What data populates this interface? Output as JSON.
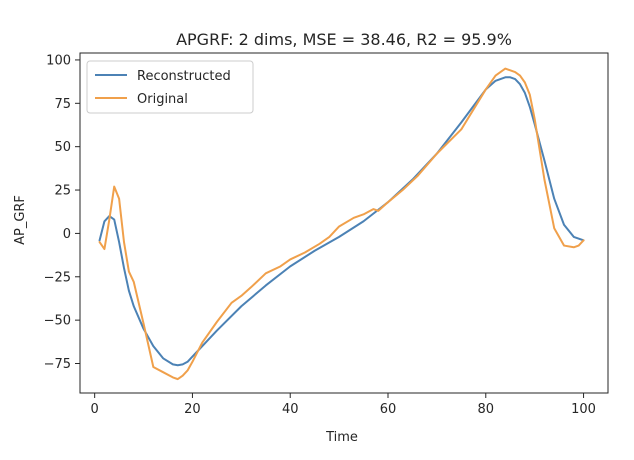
{
  "chart_data": {
    "type": "line",
    "title": "APGRF: 2 dims, MSE = 38.46, R2 = 95.9%",
    "xlabel": "Time",
    "ylabel": "AP_GRF",
    "xlim": [
      -3,
      105
    ],
    "ylim": [
      -92,
      104
    ],
    "xticks": [
      0,
      20,
      40,
      60,
      80,
      100
    ],
    "yticks": [
      -75,
      -50,
      -25,
      0,
      25,
      50,
      75,
      100
    ],
    "grid": false,
    "legend_position": "top-left",
    "series": [
      {
        "name": "Reconstructed",
        "color": "#4c82b5",
        "x": [
          1,
          2,
          3,
          4,
          5,
          6,
          7,
          8,
          10,
          12,
          14,
          16,
          17,
          18,
          19,
          20,
          22,
          25,
          30,
          35,
          40,
          45,
          50,
          55,
          60,
          65,
          70,
          75,
          80,
          82,
          84,
          85,
          86,
          87,
          88,
          89,
          90,
          92,
          94,
          96,
          98,
          100
        ],
        "y": [
          -4,
          7,
          10,
          8,
          -5,
          -20,
          -33,
          -42,
          -55,
          -65,
          -72,
          -75.5,
          -76,
          -75.5,
          -74,
          -71,
          -65,
          -56,
          -42,
          -30,
          -19,
          -10,
          -2,
          7,
          18,
          31,
          46,
          64,
          83,
          88,
          90,
          90,
          89,
          86,
          81,
          73,
          63,
          42,
          20,
          5,
          -2,
          -4
        ]
      },
      {
        "name": "Original",
        "color": "#f0a04b",
        "x": [
          1,
          2,
          3,
          4,
          5,
          6,
          7,
          8,
          10,
          12,
          14,
          16,
          17,
          18,
          19,
          20,
          22,
          25,
          28,
          30,
          32,
          35,
          38,
          40,
          43,
          46,
          48,
          50,
          53,
          55,
          57,
          58,
          60,
          63,
          66,
          70,
          75,
          80,
          82,
          84,
          85,
          86,
          87,
          88,
          89,
          90,
          92,
          94,
          96,
          98,
          99,
          100
        ],
        "y": [
          -5,
          -9,
          8,
          27,
          20,
          -5,
          -22,
          -28,
          -52,
          -77,
          -80,
          -83,
          -84,
          -82,
          -79,
          -74,
          -63,
          -51,
          -40,
          -36,
          -31,
          -23,
          -19,
          -15,
          -11,
          -6,
          -2,
          4,
          9,
          11,
          14,
          13,
          18,
          25,
          33,
          46,
          60,
          83,
          91,
          95,
          94,
          93,
          91,
          87,
          80,
          66,
          31,
          3,
          -7,
          -8,
          -7,
          -4
        ]
      }
    ]
  }
}
